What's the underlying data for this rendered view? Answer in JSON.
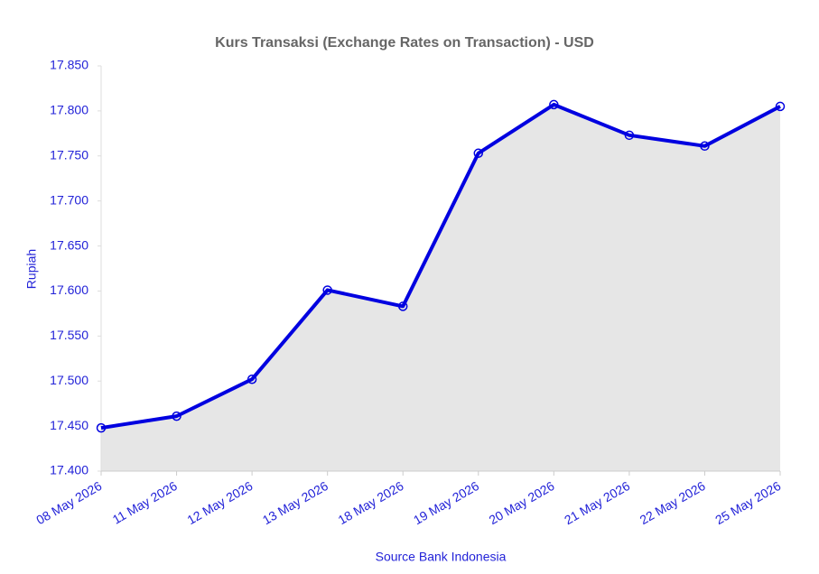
{
  "chart_data": {
    "type": "line",
    "title": "Kurs Transaksi (Exchange Rates on Transaction) - USD",
    "x_label": "Source Bank Indonesia",
    "y_label": "Rupiah",
    "categories": [
      "08 May 2026",
      "11 May 2026",
      "12 May 2026",
      "13 May 2026",
      "18 May 2026",
      "19 May 2026",
      "20 May 2026",
      "21 May 2026",
      "22 May 2026",
      "25 May 2026"
    ],
    "series": [
      {
        "name": "USD",
        "color": "#0000e0",
        "values": [
          17448,
          17461,
          17502,
          17601,
          17583,
          17753,
          17807,
          17773,
          17761,
          17805
        ]
      }
    ],
    "area_color": "#e6e6e6",
    "ylim": [
      17400,
      17850
    ],
    "yticks": [
      {
        "value": 17400,
        "label": "17.400"
      },
      {
        "value": 17450,
        "label": "17.450"
      },
      {
        "value": 17500,
        "label": "17.500"
      },
      {
        "value": 17550,
        "label": "17.550"
      },
      {
        "value": 17600,
        "label": "17.600"
      },
      {
        "value": 17650,
        "label": "17.650"
      },
      {
        "value": 17700,
        "label": "17.700"
      },
      {
        "value": 17750,
        "label": "17.750"
      },
      {
        "value": 17800,
        "label": "17.800"
      },
      {
        "value": 17850,
        "label": "17.850"
      }
    ],
    "grid": false,
    "legend": false
  }
}
